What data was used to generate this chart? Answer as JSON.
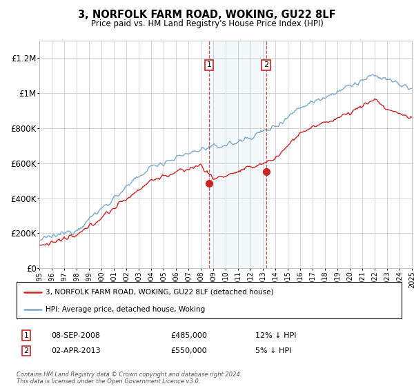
{
  "title": "3, NORFOLK FARM ROAD, WOKING, GU22 8LF",
  "subtitle": "Price paid vs. HM Land Registry's House Price Index (HPI)",
  "footer": "Contains HM Land Registry data © Crown copyright and database right 2024.\nThis data is licensed under the Open Government Licence v3.0.",
  "legend_line1": "3, NORFOLK FARM ROAD, WOKING, GU22 8LF (detached house)",
  "legend_line2": "HPI: Average price, detached house, Woking",
  "transaction1_date": "08-SEP-2008",
  "transaction1_price": "£485,000",
  "transaction1_hpi": "12% ↓ HPI",
  "transaction2_date": "02-APR-2013",
  "transaction2_price": "£550,000",
  "transaction2_hpi": "5% ↓ HPI",
  "hpi_color": "#7aa8cc",
  "price_color": "#cc2222",
  "shade_color": "#d0e4f0",
  "marker_box_color": "#cc2222",
  "ylim": [
    0,
    1300000
  ],
  "yticks": [
    0,
    200000,
    400000,
    600000,
    800000,
    1000000,
    1200000
  ],
  "ytick_labels": [
    "£0",
    "£200K",
    "£400K",
    "£600K",
    "£800K",
    "£1M",
    "£1.2M"
  ],
  "transaction1_year": 2008.67,
  "transaction2_year": 2013.25,
  "transaction1_price_val": 485000,
  "transaction2_price_val": 550000
}
